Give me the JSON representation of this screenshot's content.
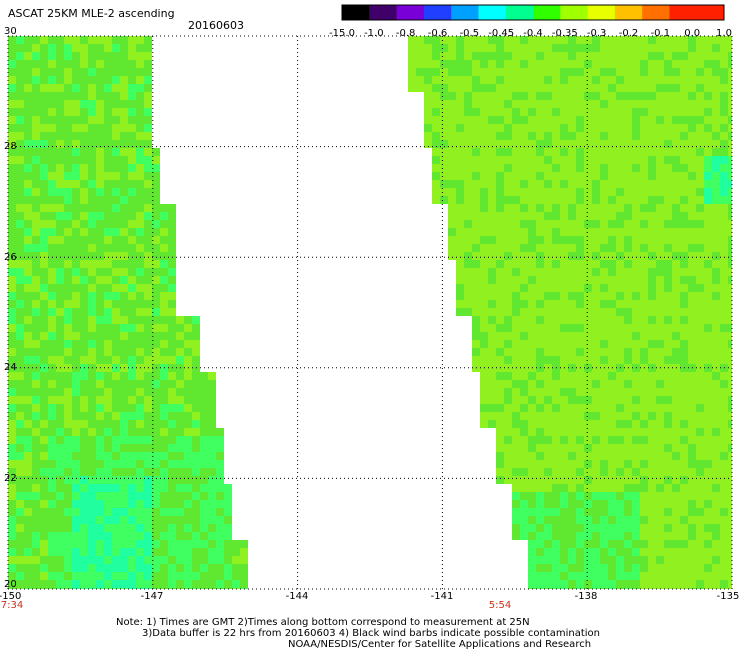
{
  "title": "ASCAT 25KM MLE-2 ascending",
  "date": "20160603",
  "colorbar": {
    "labels": [
      "-15.0",
      "-1.0",
      "-0.8",
      "-0.6",
      "-0.5",
      "-0.45",
      "-0.4",
      "-0.35",
      "-0.3",
      "-0.2",
      "-0.1",
      "0.0",
      "1.0"
    ],
    "colors": [
      "#000000",
      "#40006a",
      "#7a00d8",
      "#2040ff",
      "#00a0ff",
      "#00ffff",
      "#00ff90",
      "#30ff00",
      "#a0ff00",
      "#e8ff00",
      "#ffc000",
      "#ff7000",
      "#ff2000",
      "#ff2000"
    ]
  },
  "y_ticks": [
    "30",
    "28",
    "26",
    "24",
    "22",
    "20"
  ],
  "x_ticks": [
    "-150",
    "-147",
    "-144",
    "-141",
    "-138",
    "-135"
  ],
  "times": [
    {
      "lon": "-150",
      "label": "7:34"
    },
    {
      "lon": "-140.5",
      "label": "5:54"
    }
  ],
  "map": {
    "lon_range": [
      -150,
      -135
    ],
    "lat_range": [
      20,
      30
    ],
    "swaths": [
      {
        "name": "west swath",
        "edge_lon": [
          [
            30,
            -147.0
          ],
          [
            29,
            -147.0
          ],
          [
            28,
            -146.75
          ],
          [
            27,
            -146.5
          ],
          [
            26,
            -146.4
          ],
          [
            25,
            -146.0
          ],
          [
            24,
            -145.6
          ],
          [
            23,
            -145.5
          ],
          [
            22,
            -145.25
          ],
          [
            21,
            -145.0
          ],
          [
            20,
            -144.75
          ]
        ]
      },
      {
        "name": "east swath",
        "edge_lon": [
          [
            30,
            -141.8
          ],
          [
            29,
            -141.5
          ],
          [
            28,
            -141.25
          ],
          [
            27,
            -141.0
          ],
          [
            26,
            -140.75
          ],
          [
            25,
            -140.5
          ],
          [
            24,
            -140.25
          ],
          [
            23,
            -139.9
          ],
          [
            22,
            -139.6
          ],
          [
            21,
            -139.3
          ],
          [
            20,
            -139.0
          ]
        ]
      }
    ],
    "data_colors": {
      "base": "#90f020",
      "mid": "#60e830",
      "low": "#40ff60",
      "cyan": "#20ffa0"
    }
  },
  "notes": {
    "line1": "Note: 1) Times are GMT 2)Times along bottom correspond to measurement at 25N",
    "line2": "3)Data buffer is 22 hrs from 20160603 4) Black wind barbs indicate possible contamination",
    "line3": "NOAA/NESDIS/Center for Satellite Applications and Research"
  }
}
